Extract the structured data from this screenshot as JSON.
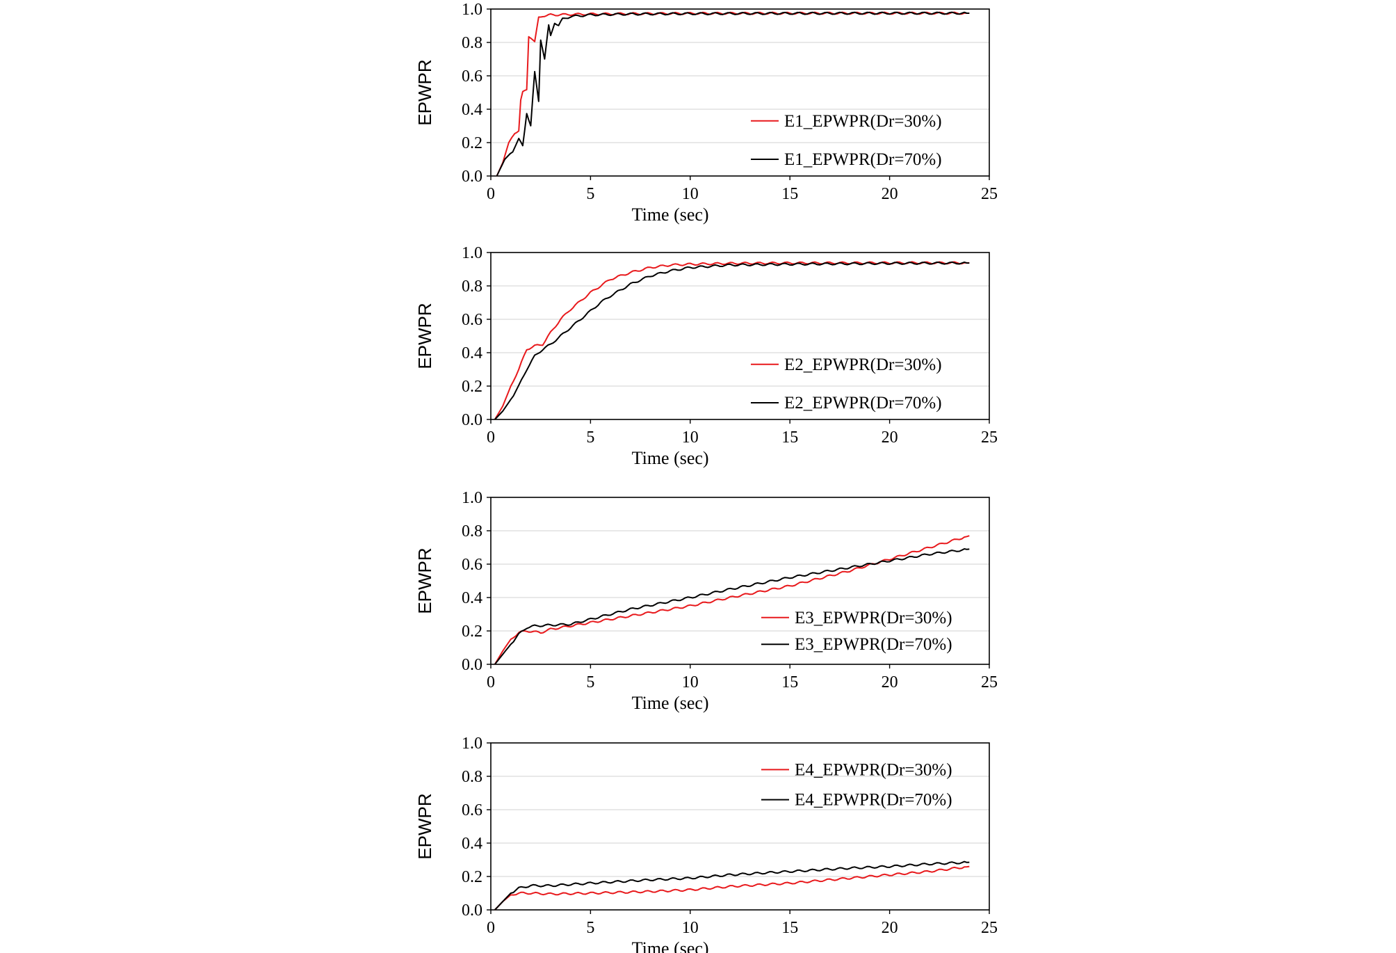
{
  "colors": {
    "dr30": "#e8191c",
    "dr70": "#000000",
    "grid": "#d9d9d9"
  },
  "chart_data": [
    {
      "type": "line",
      "xlabel": "Time (sec)",
      "ylabel": "EPWPR",
      "xlim": [
        0,
        25
      ],
      "ylim": [
        0,
        1.0
      ],
      "xticks": [
        "0",
        "5",
        "10",
        "15",
        "20",
        "25"
      ],
      "yticks": [
        "0.0",
        "0.2",
        "0.4",
        "0.6",
        "0.8",
        "1.0"
      ],
      "grid": "horizontal",
      "legend": "right-middle",
      "series": [
        {
          "name": "E1_EPWPR(Dr=30%)",
          "color": "#e8191c",
          "x": [
            0.3,
            0.6,
            0.9,
            1.2,
            1.4,
            1.5,
            1.6,
            1.8,
            1.9,
            2.0,
            2.2,
            2.4,
            2.6,
            2.8,
            3.0,
            3.5,
            4.0,
            5.0,
            7.0,
            10.0,
            15.0,
            20.0,
            24.0
          ],
          "y": [
            0.0,
            0.08,
            0.2,
            0.26,
            0.27,
            0.45,
            0.5,
            0.52,
            0.84,
            0.83,
            0.8,
            0.95,
            0.96,
            0.96,
            0.965,
            0.966,
            0.968,
            0.97,
            0.972,
            0.974,
            0.975,
            0.975,
            0.975
          ]
        },
        {
          "name": "E1_EPWPR(Dr=70%)",
          "color": "#000000",
          "x": [
            0.3,
            0.7,
            1.1,
            1.4,
            1.6,
            1.8,
            2.0,
            2.2,
            2.4,
            2.5,
            2.7,
            2.9,
            3.0,
            3.2,
            3.4,
            3.6,
            4.0,
            5.0,
            7.0,
            10.0,
            15.0,
            20.0,
            24.0
          ],
          "y": [
            0.0,
            0.1,
            0.15,
            0.22,
            0.18,
            0.38,
            0.3,
            0.62,
            0.45,
            0.82,
            0.7,
            0.9,
            0.84,
            0.92,
            0.9,
            0.94,
            0.955,
            0.965,
            0.97,
            0.972,
            0.974,
            0.975,
            0.975
          ]
        }
      ]
    },
    {
      "type": "line",
      "xlabel": "Time (sec)",
      "ylabel": "EPWPR",
      "xlim": [
        0,
        25
      ],
      "ylim": [
        0,
        1.0
      ],
      "xticks": [
        "0",
        "5",
        "10",
        "15",
        "20",
        "25"
      ],
      "yticks": [
        "0.0",
        "0.2",
        "0.4",
        "0.6",
        "0.8",
        "1.0"
      ],
      "grid": "horizontal",
      "legend": "right-middle",
      "series": [
        {
          "name": "E2_EPWPR(Dr=30%)",
          "color": "#e8191c",
          "x": [
            0.2,
            0.6,
            1.0,
            1.4,
            1.8,
            2.2,
            2.6,
            3.0,
            3.5,
            4.0,
            4.5,
            5.0,
            5.5,
            6.0,
            7.0,
            8.0,
            9.0,
            10.0,
            12.0,
            15.0,
            20.0,
            24.0
          ],
          "y": [
            0.0,
            0.08,
            0.2,
            0.3,
            0.42,
            0.44,
            0.45,
            0.52,
            0.6,
            0.66,
            0.71,
            0.76,
            0.8,
            0.84,
            0.88,
            0.91,
            0.925,
            0.93,
            0.935,
            0.937,
            0.938,
            0.938
          ]
        },
        {
          "name": "E2_EPWPR(Dr=70%)",
          "color": "#000000",
          "x": [
            0.2,
            0.6,
            1.0,
            1.4,
            1.8,
            2.2,
            2.6,
            3.0,
            3.5,
            4.0,
            4.5,
            5.0,
            5.5,
            6.0,
            7.0,
            8.0,
            9.0,
            10.0,
            12.0,
            15.0,
            20.0,
            24.0
          ],
          "y": [
            0.0,
            0.05,
            0.12,
            0.2,
            0.3,
            0.38,
            0.42,
            0.45,
            0.5,
            0.55,
            0.6,
            0.65,
            0.7,
            0.74,
            0.81,
            0.86,
            0.89,
            0.91,
            0.925,
            0.93,
            0.935,
            0.937
          ]
        }
      ]
    },
    {
      "type": "line",
      "xlabel": "Time (sec)",
      "ylabel": "EPWPR",
      "xlim": [
        0,
        25
      ],
      "ylim": [
        0,
        1.0
      ],
      "xticks": [
        "0",
        "5",
        "10",
        "15",
        "20",
        "25"
      ],
      "yticks": [
        "0.0",
        "0.2",
        "0.4",
        "0.6",
        "0.8",
        "1.0"
      ],
      "grid": "horizontal",
      "legend": "right-lower",
      "series": [
        {
          "name": "E3_EPWPR(Dr=30%)",
          "color": "#e8191c",
          "x": [
            0.2,
            0.6,
            1.0,
            1.4,
            1.8,
            2.5,
            3.0,
            4.0,
            5.0,
            7.0,
            10.0,
            12.0,
            15.0,
            18.0,
            20.0,
            22.0,
            24.0
          ],
          "y": [
            0.0,
            0.08,
            0.15,
            0.19,
            0.2,
            0.19,
            0.21,
            0.23,
            0.25,
            0.29,
            0.35,
            0.4,
            0.47,
            0.56,
            0.63,
            0.7,
            0.77
          ]
        },
        {
          "name": "E3_EPWPR(Dr=70%)",
          "color": "#000000",
          "x": [
            0.2,
            0.6,
            1.0,
            1.4,
            1.8,
            2.2,
            3.0,
            4.0,
            5.0,
            7.0,
            10.0,
            12.0,
            15.0,
            18.0,
            20.0,
            22.0,
            24.0
          ],
          "y": [
            0.0,
            0.06,
            0.12,
            0.18,
            0.22,
            0.23,
            0.235,
            0.24,
            0.27,
            0.33,
            0.4,
            0.45,
            0.52,
            0.58,
            0.62,
            0.66,
            0.69
          ]
        }
      ]
    },
    {
      "type": "line",
      "xlabel": "Time (sec)",
      "ylabel": "EPWPR",
      "xlim": [
        0,
        25
      ],
      "ylim": [
        0,
        1.0
      ],
      "xticks": [
        "0",
        "5",
        "10",
        "15",
        "20",
        "25"
      ],
      "yticks": [
        "0.0",
        "0.2",
        "0.4",
        "0.6",
        "0.8",
        "1.0"
      ],
      "grid": "horizontal",
      "legend": "right-upper",
      "series": [
        {
          "name": "E4_EPWPR(Dr=30%)",
          "color": "#e8191c",
          "x": [
            0.2,
            0.6,
            1.0,
            1.4,
            2.0,
            3.0,
            5.0,
            8.0,
            10.0,
            12.0,
            15.0,
            18.0,
            20.0,
            22.0,
            24.0
          ],
          "y": [
            0.0,
            0.05,
            0.09,
            0.1,
            0.1,
            0.095,
            0.1,
            0.11,
            0.12,
            0.14,
            0.16,
            0.19,
            0.21,
            0.23,
            0.26
          ]
        },
        {
          "name": "E4_EPWPR(Dr=70%)",
          "color": "#000000",
          "x": [
            0.2,
            0.6,
            1.0,
            1.4,
            2.0,
            3.0,
            5.0,
            8.0,
            10.0,
            12.0,
            15.0,
            18.0,
            20.0,
            22.0,
            24.0
          ],
          "y": [
            0.0,
            0.05,
            0.1,
            0.13,
            0.145,
            0.145,
            0.16,
            0.18,
            0.19,
            0.21,
            0.23,
            0.25,
            0.26,
            0.275,
            0.285
          ]
        }
      ]
    }
  ]
}
